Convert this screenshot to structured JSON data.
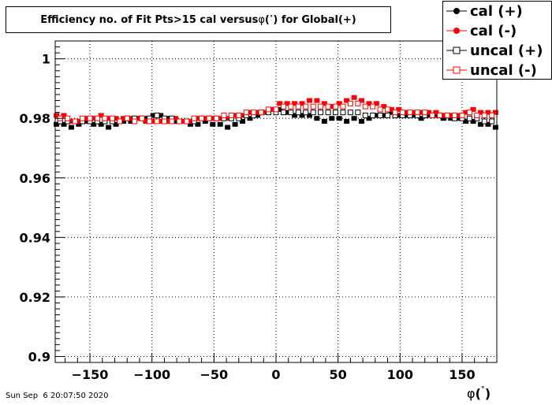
{
  "chart_data": {
    "type": "scatter",
    "title_prefix": "Efficiency no. of Fit Pts>15 cal versus ",
    "title_phi": "φ",
    "title_deg": "˚",
    "title_suffix": ") for Global(+)",
    "xlabel_phi": "φ",
    "xlabel_deg": "˚",
    "xlim": [
      -178,
      178
    ],
    "ylim": [
      0.898,
      1.006
    ],
    "x_ticks": [
      -150,
      -100,
      -50,
      0,
      50,
      100,
      150
    ],
    "x_tick_labels": [
      "−150",
      "−100",
      "−50",
      "0",
      "50",
      "100",
      "150"
    ],
    "y_ticks": [
      0.9,
      0.92,
      0.94,
      0.96,
      0.98,
      1.0
    ],
    "y_tick_labels": [
      "0.9",
      "0.92",
      "0.94",
      "0.96",
      "0.98",
      "1"
    ],
    "grid": true,
    "legend_position": "top-right",
    "series": [
      {
        "name": "cal (+)",
        "marker": "filled-circle",
        "color": "#000000",
        "x": [
          -177,
          -171,
          -165,
          -159,
          -153,
          -147,
          -141,
          -135,
          -129,
          -123,
          -117,
          -111,
          -105,
          -99,
          -93,
          -87,
          -81,
          -75,
          -69,
          -63,
          -57,
          -51,
          -45,
          -39,
          -33,
          -27,
          -21,
          -15,
          -9,
          -3,
          3,
          9,
          15,
          21,
          27,
          33,
          39,
          45,
          51,
          57,
          63,
          69,
          75,
          81,
          87,
          93,
          99,
          105,
          111,
          117,
          123,
          129,
          135,
          141,
          147,
          153,
          159,
          165,
          171,
          177
        ],
        "y": [
          0.978,
          0.978,
          0.977,
          0.978,
          0.979,
          0.978,
          0.978,
          0.977,
          0.978,
          0.979,
          0.979,
          0.98,
          0.98,
          0.981,
          0.981,
          0.98,
          0.979,
          0.979,
          0.978,
          0.978,
          0.979,
          0.978,
          0.978,
          0.977,
          0.978,
          0.979,
          0.98,
          0.981,
          0.982,
          0.983,
          0.983,
          0.982,
          0.981,
          0.981,
          0.981,
          0.98,
          0.979,
          0.98,
          0.98,
          0.979,
          0.98,
          0.979,
          0.98,
          0.981,
          0.981,
          0.982,
          0.981,
          0.981,
          0.981,
          0.98,
          0.981,
          0.981,
          0.98,
          0.98,
          0.98,
          0.979,
          0.979,
          0.978,
          0.978,
          0.977
        ]
      },
      {
        "name": "cal (-)",
        "marker": "filled-circle",
        "color": "#ff0000",
        "x": [
          -177,
          -171,
          -165,
          -159,
          -153,
          -147,
          -141,
          -135,
          -129,
          -123,
          -117,
          -111,
          -105,
          -99,
          -93,
          -87,
          -81,
          -75,
          -69,
          -63,
          -57,
          -51,
          -45,
          -39,
          -33,
          -27,
          -21,
          -15,
          -9,
          -3,
          3,
          9,
          15,
          21,
          27,
          33,
          39,
          45,
          51,
          57,
          63,
          69,
          75,
          81,
          87,
          93,
          99,
          105,
          111,
          117,
          123,
          129,
          135,
          141,
          147,
          153,
          159,
          165,
          171,
          177
        ],
        "y": [
          0.981,
          0.981,
          0.979,
          0.979,
          0.98,
          0.98,
          0.981,
          0.98,
          0.98,
          0.98,
          0.98,
          0.98,
          0.979,
          0.979,
          0.979,
          0.979,
          0.98,
          0.979,
          0.979,
          0.98,
          0.98,
          0.98,
          0.98,
          0.98,
          0.981,
          0.981,
          0.982,
          0.982,
          0.982,
          0.983,
          0.985,
          0.985,
          0.985,
          0.985,
          0.986,
          0.986,
          0.985,
          0.984,
          0.985,
          0.986,
          0.987,
          0.986,
          0.985,
          0.985,
          0.984,
          0.983,
          0.983,
          0.982,
          0.982,
          0.982,
          0.982,
          0.982,
          0.981,
          0.981,
          0.981,
          0.982,
          0.983,
          0.982,
          0.982,
          0.982
        ]
      },
      {
        "name": "uncal (+)",
        "marker": "open-square",
        "color": "#000000",
        "x": [
          -174,
          -168,
          -162,
          -156,
          -150,
          -144,
          -138,
          -132,
          -126,
          -120,
          -114,
          -108,
          -102,
          -96,
          -90,
          -84,
          -78,
          -72,
          -66,
          -60,
          -54,
          -48,
          -42,
          -36,
          -30,
          -24,
          -18,
          -12,
          -6,
          0,
          6,
          12,
          18,
          24,
          30,
          36,
          42,
          48,
          54,
          60,
          66,
          72,
          78,
          84,
          90,
          96,
          102,
          108,
          114,
          120,
          126,
          132,
          138,
          144,
          150,
          156,
          162,
          168,
          174
        ],
        "y": [
          0.979,
          0.979,
          0.979,
          0.979,
          0.979,
          0.979,
          0.979,
          0.979,
          0.979,
          0.98,
          0.98,
          0.98,
          0.98,
          0.981,
          0.98,
          0.98,
          0.979,
          0.979,
          0.979,
          0.98,
          0.98,
          0.98,
          0.98,
          0.98,
          0.98,
          0.981,
          0.981,
          0.982,
          0.982,
          0.982,
          0.982,
          0.982,
          0.982,
          0.982,
          0.982,
          0.982,
          0.982,
          0.982,
          0.982,
          0.982,
          0.982,
          0.981,
          0.981,
          0.981,
          0.981,
          0.981,
          0.981,
          0.981,
          0.981,
          0.981,
          0.981,
          0.981,
          0.981,
          0.98,
          0.98,
          0.98,
          0.98,
          0.979,
          0.979
        ]
      },
      {
        "name": "uncal (-)",
        "marker": "open-square",
        "color": "#ff0000",
        "x": [
          -174,
          -168,
          -162,
          -156,
          -150,
          -144,
          -138,
          -132,
          -126,
          -120,
          -114,
          -108,
          -102,
          -96,
          -90,
          -84,
          -78,
          -72,
          -66,
          -60,
          -54,
          -48,
          -42,
          -36,
          -30,
          -24,
          -18,
          -12,
          -6,
          0,
          6,
          12,
          18,
          24,
          30,
          36,
          42,
          48,
          54,
          60,
          66,
          72,
          78,
          84,
          90,
          96,
          102,
          108,
          114,
          120,
          126,
          132,
          138,
          144,
          150,
          156,
          162,
          168,
          174
        ],
        "y": [
          0.98,
          0.98,
          0.979,
          0.98,
          0.98,
          0.98,
          0.98,
          0.98,
          0.979,
          0.98,
          0.979,
          0.98,
          0.979,
          0.979,
          0.979,
          0.979,
          0.979,
          0.979,
          0.98,
          0.98,
          0.98,
          0.98,
          0.981,
          0.981,
          0.981,
          0.982,
          0.982,
          0.982,
          0.983,
          0.983,
          0.984,
          0.984,
          0.984,
          0.984,
          0.984,
          0.984,
          0.984,
          0.984,
          0.984,
          0.985,
          0.985,
          0.984,
          0.984,
          0.983,
          0.983,
          0.982,
          0.982,
          0.982,
          0.982,
          0.982,
          0.981,
          0.981,
          0.981,
          0.981,
          0.981,
          0.982,
          0.981,
          0.981,
          0.981
        ]
      }
    ]
  },
  "timestamp": "Sun Sep  6 20:07:50 2020"
}
